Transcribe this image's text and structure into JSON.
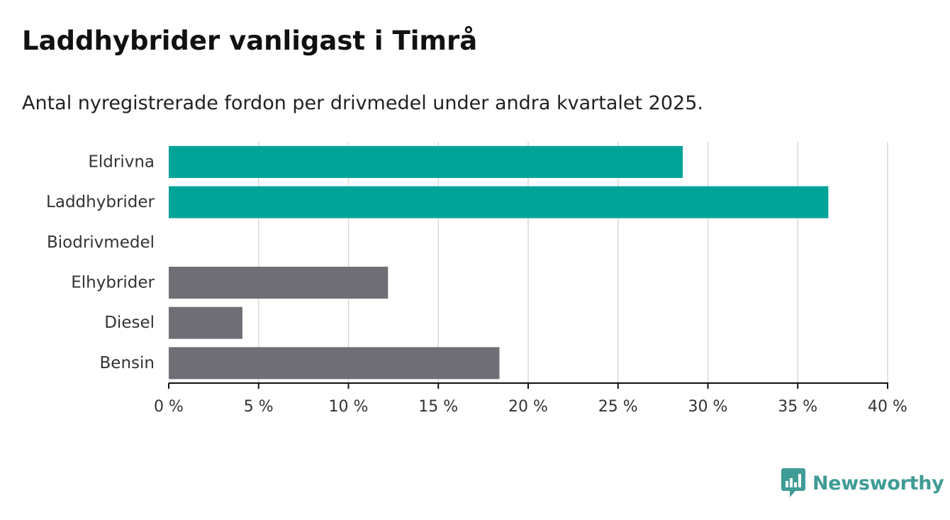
{
  "header": {
    "title": "Laddhybrider vanligast i Timrå",
    "subtitle": "Antal nyregistrerade fordon per drivmedel under andra kvartalet 2025."
  },
  "brand": {
    "name": "Newsworthy",
    "color": "#3f9c96",
    "icon": "bar-chart-icon"
  },
  "chart_data": {
    "type": "bar",
    "orientation": "horizontal",
    "title": "Laddhybrider vanligast i Timrå",
    "subtitle": "Antal nyregistrerade fordon per drivmedel under andra kvartalet 2025.",
    "xlabel": "",
    "ylabel": "",
    "categories": [
      "Eldrivna",
      "Laddhybrider",
      "Biodrivmedel",
      "Elhybrider",
      "Diesel",
      "Bensin"
    ],
    "values": [
      28.6,
      36.7,
      0,
      12.2,
      4.1,
      18.4
    ],
    "unit": "%",
    "colors": [
      "#00a497",
      "#00a497",
      "#00a497",
      "#6f6e74",
      "#6f6e74",
      "#6f6e74"
    ],
    "xlim": [
      0,
      40
    ],
    "xticks": [
      0,
      5,
      10,
      15,
      20,
      25,
      30,
      35,
      40
    ],
    "xtick_labels": [
      "0 %",
      "5 %",
      "10 %",
      "15 %",
      "20 %",
      "25 %",
      "30 %",
      "35 %",
      "40 %"
    ],
    "grid": "vertical",
    "legend": "none"
  }
}
